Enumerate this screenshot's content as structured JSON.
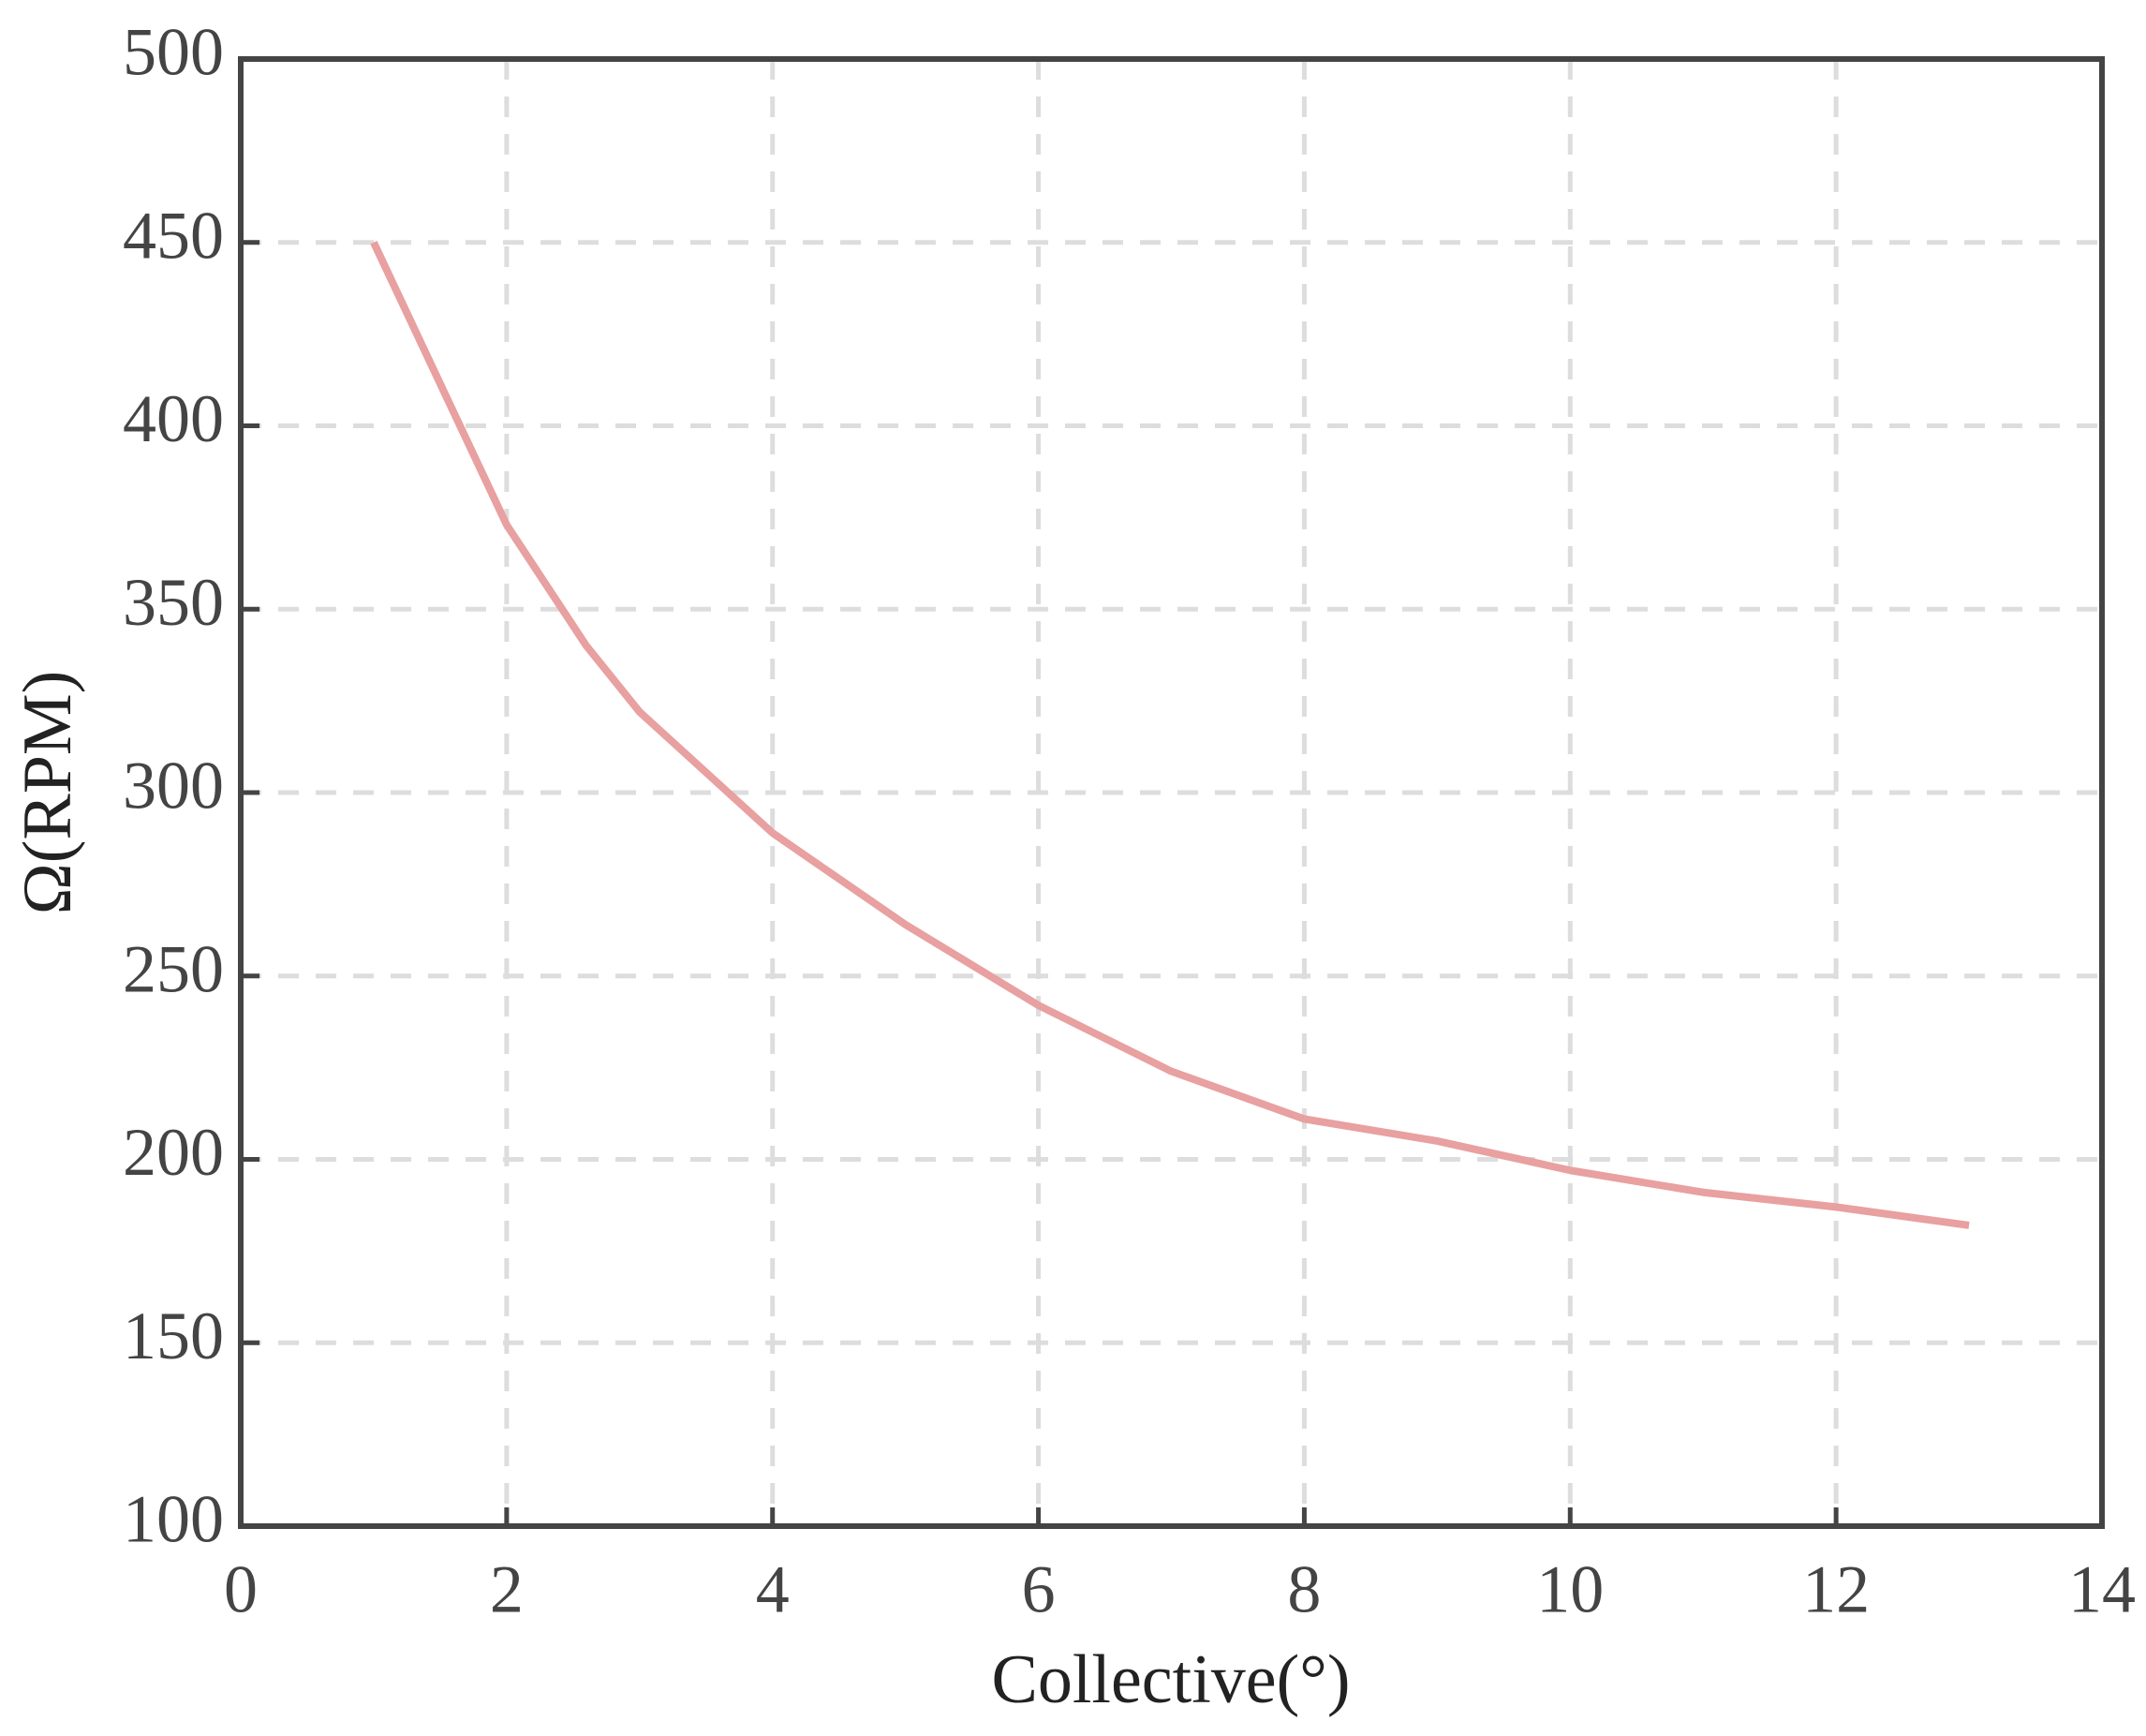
{
  "chart_data": {
    "type": "line",
    "x_label": "Collective(°)",
    "y_label": "Ω(RPM)",
    "x": [
      1,
      2,
      2.6,
      3,
      4,
      5,
      6,
      7,
      8,
      9,
      10,
      11,
      12,
      13
    ],
    "series": [
      {
        "color": "#e8a0a0",
        "values": [
          450,
          373,
          340,
          322,
          289,
          264,
          242,
          224,
          211,
          205,
          197,
          191,
          187,
          182
        ]
      }
    ],
    "xlim": [
      0,
      14
    ],
    "xticks": [
      0,
      2,
      4,
      6,
      8,
      10,
      12,
      14
    ],
    "ylim": [
      100,
      500
    ],
    "yticks": [
      100,
      150,
      200,
      250,
      300,
      350,
      400,
      450,
      500
    ],
    "grid": true
  }
}
